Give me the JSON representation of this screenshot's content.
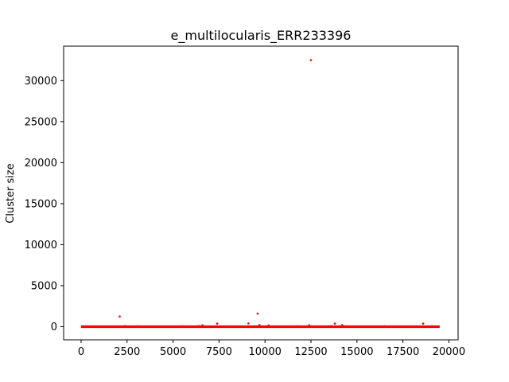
{
  "chart_data": {
    "type": "scatter",
    "title": "e_multilocularis_ERR233396",
    "xlabel": "",
    "ylabel": "Cluster size",
    "xlim": [
      -950,
      20500
    ],
    "ylim": [
      -1600,
      34200
    ],
    "xticks": [
      0,
      2500,
      5000,
      7500,
      10000,
      12500,
      15000,
      17500,
      20000
    ],
    "yticks": [
      0,
      5000,
      10000,
      15000,
      20000,
      25000,
      30000
    ],
    "xtick_labels": [
      "0",
      "2500",
      "5000",
      "7500",
      "10000",
      "12500",
      "15000",
      "17500",
      "20000"
    ],
    "ytick_labels": [
      "0",
      "5000",
      "10000",
      "15000",
      "20000",
      "25000",
      "30000"
    ],
    "grid": false,
    "marker_color": "#ff0000",
    "baseline": {
      "x_range": [
        0,
        19500
      ],
      "y": 0
    },
    "points": [
      {
        "x": 12500,
        "y": 32500
      },
      {
        "x": 9600,
        "y": 1600
      },
      {
        "x": 2100,
        "y": 1250
      },
      {
        "x": 7400,
        "y": 380
      },
      {
        "x": 9100,
        "y": 400
      },
      {
        "x": 13800,
        "y": 380
      },
      {
        "x": 14200,
        "y": 200
      },
      {
        "x": 18600,
        "y": 380
      },
      {
        "x": 6600,
        "y": 180
      },
      {
        "x": 10200,
        "y": 150
      },
      {
        "x": 12400,
        "y": 180
      },
      {
        "x": 9700,
        "y": 200
      },
      {
        "x": 300,
        "y": 60
      },
      {
        "x": 2400,
        "y": 80
      },
      {
        "x": 3100,
        "y": 60
      },
      {
        "x": 5500,
        "y": 60
      },
      {
        "x": 6400,
        "y": 80
      },
      {
        "x": 11800,
        "y": 60
      },
      {
        "x": 13600,
        "y": 80
      },
      {
        "x": 16500,
        "y": 60
      }
    ]
  }
}
